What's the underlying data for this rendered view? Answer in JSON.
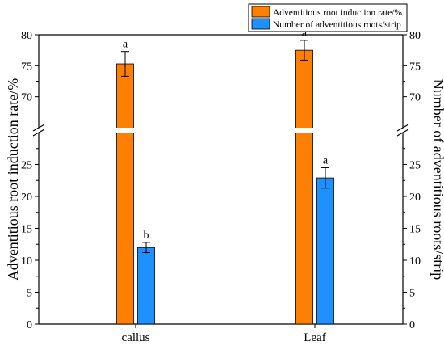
{
  "chart_data": {
    "type": "bar",
    "categories": [
      "callus",
      "Leaf"
    ],
    "series": [
      {
        "name": "Adventitious root induction rate/%",
        "color": "#FF8000",
        "axis": "left",
        "values": [
          75.3,
          77.5
        ],
        "errors": [
          2.0,
          1.6
        ],
        "letters": [
          "a",
          "a"
        ]
      },
      {
        "name": "Number of adventitious roots/strip",
        "color": "#1E90FF",
        "axis": "right",
        "values": [
          12.0,
          22.9
        ],
        "errors": [
          0.8,
          1.6
        ],
        "letters": [
          "b",
          "a"
        ]
      }
    ],
    "ylabel_left": "Adventitious root induction rate/%",
    "ylabel_right": "Number of adventitious roots/strip",
    "axis_break": {
      "lower_range": [
        0,
        30
      ],
      "upper_range": [
        65,
        80
      ]
    },
    "lower_ticks": [
      "0",
      "5",
      "10",
      "15",
      "20",
      "25"
    ],
    "upper_ticks": [
      "70",
      "75",
      "80"
    ],
    "legend_position": "top-right",
    "grid": false
  }
}
